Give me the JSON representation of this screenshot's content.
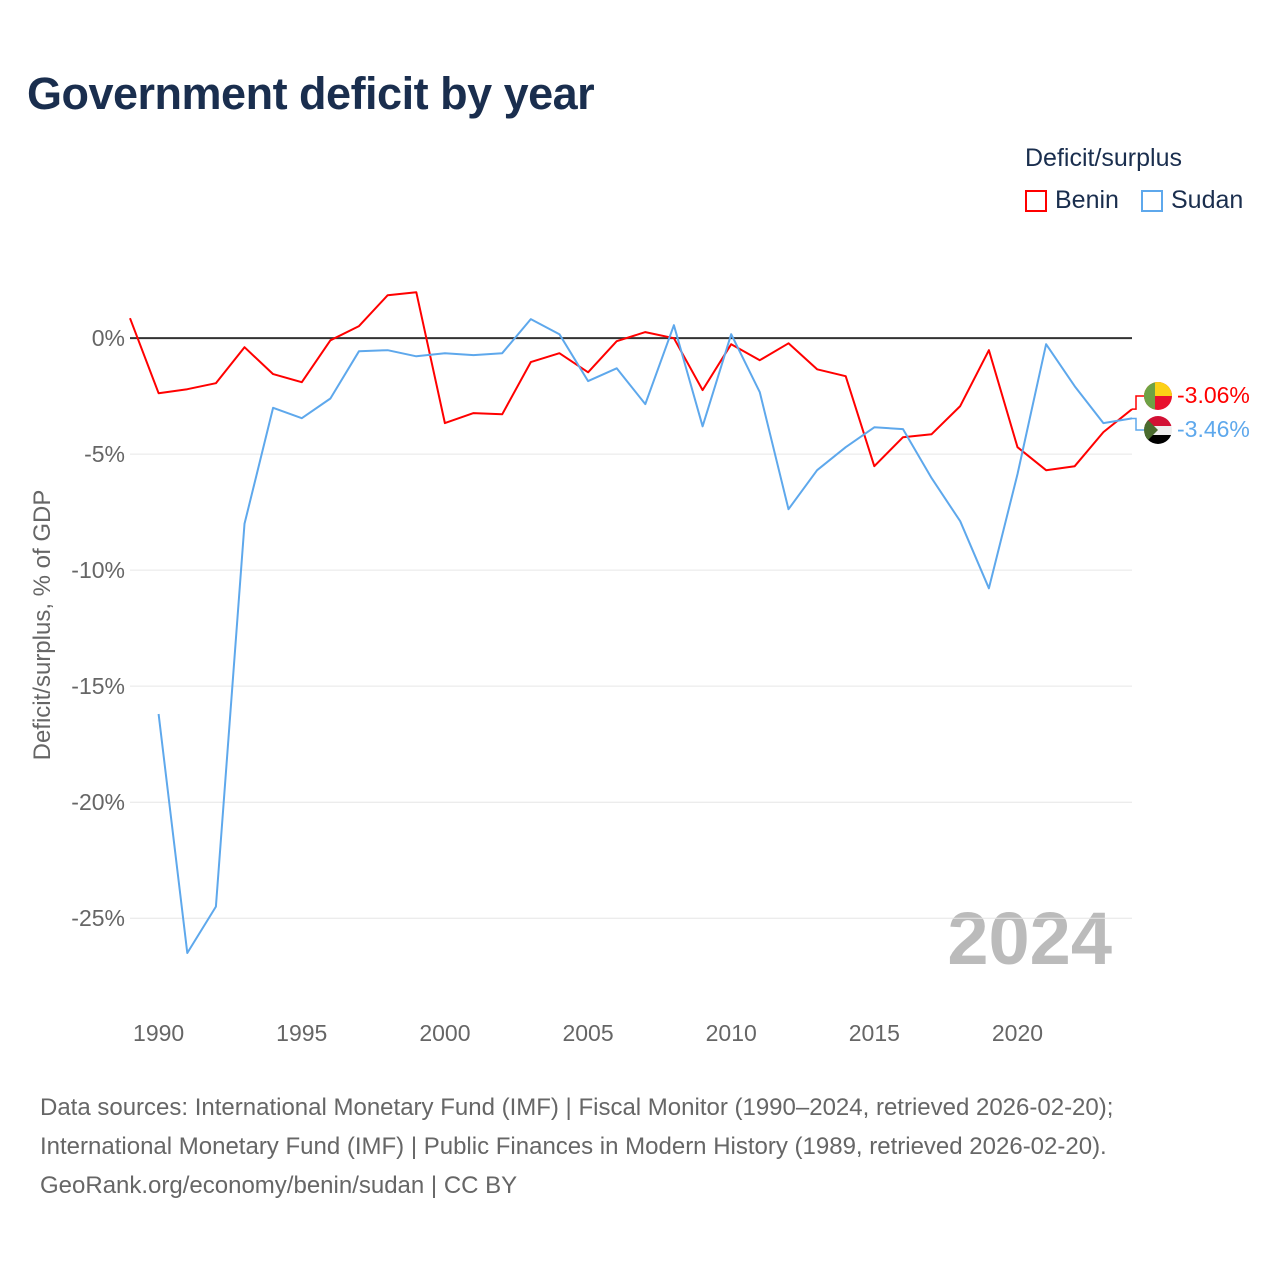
{
  "title": "Government deficit by year",
  "legend": {
    "title": "Deficit/surplus",
    "items": [
      {
        "name": "Benin",
        "color": "#ff0000"
      },
      {
        "name": "Sudan",
        "color": "#5ea8ec"
      }
    ]
  },
  "year_label": "2024",
  "footer": [
    "Data sources: International Monetary Fund (IMF) | Fiscal Monitor (1990–2024, retrieved 2026-02-20);",
    "International Monetary Fund (IMF) | Public Finances in Modern History (1989, retrieved 2026-02-20).",
    "GeoRank.org/economy/benin/sudan | CC BY"
  ],
  "chart_data": {
    "type": "line",
    "title": "Government deficit by year",
    "ylabel": "Deficit/surplus, % of GDP",
    "xlabel": "",
    "xlim": [
      1989,
      2024
    ],
    "ylim": [
      -29,
      3.8
    ],
    "xticks": [
      1990,
      1995,
      2000,
      2005,
      2010,
      2015,
      2020
    ],
    "yticks": [
      {
        "v": 0,
        "label": "0%"
      },
      {
        "v": -5,
        "label": "-5%"
      },
      {
        "v": -10,
        "label": "-10%"
      },
      {
        "v": -15,
        "label": "-15%"
      },
      {
        "v": -20,
        "label": "-20%"
      },
      {
        "v": -25,
        "label": "-25%"
      }
    ],
    "grid": true,
    "legend_position": "top-right",
    "series": [
      {
        "name": "Benin",
        "color": "#ff0000",
        "end_label": "-3.06%",
        "start": 1989,
        "values": [
          0.86,
          -2.37,
          -2.2,
          -1.94,
          -0.39,
          -1.55,
          -1.9,
          -0.09,
          0.52,
          1.85,
          1.98,
          -3.66,
          -3.23,
          -3.28,
          -1.03,
          -0.65,
          -1.47,
          -0.13,
          0.26,
          0,
          -2.24,
          -0.26,
          -0.95,
          -0.22,
          -1.34,
          -1.64,
          -5.52,
          -4.27,
          -4.14,
          -2.93,
          -0.52,
          -4.7,
          -5.69,
          -5.52,
          -4.05,
          -3.06
        ]
      },
      {
        "name": "Sudan",
        "color": "#5ea8ec",
        "end_label": "-3.46%",
        "start": 1990,
        "values": [
          -16.2,
          -26.5,
          -24.5,
          -8.0,
          -3.0,
          -3.45,
          -2.6,
          -0.56,
          -0.52,
          -0.78,
          -0.65,
          -0.73,
          -0.65,
          0.82,
          0.17,
          -1.85,
          -1.3,
          -2.84,
          0.56,
          -3.8,
          0.17,
          -2.33,
          -7.37,
          -5.69,
          -4.7,
          -3.84,
          -3.92,
          -6.03,
          -7.89,
          -10.78,
          -5.86,
          -0.26,
          -2.07,
          -3.66,
          -3.46
        ]
      }
    ]
  }
}
